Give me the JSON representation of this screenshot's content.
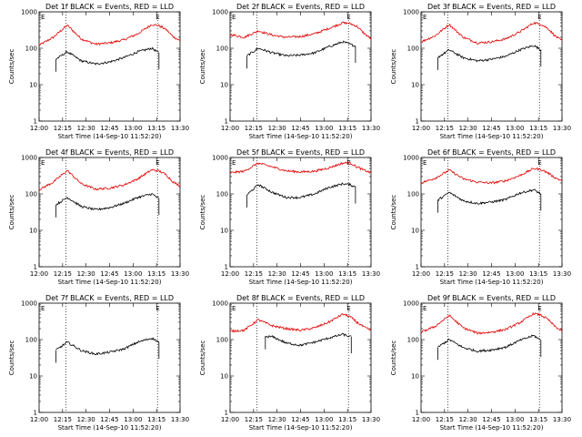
{
  "chart_data": {
    "type": "line",
    "y_scale": "log",
    "ylim": [
      1,
      1000
    ],
    "xlim": [
      0,
      100
    ],
    "x_tick_labels": [
      "12:00",
      "12:15",
      "12:30",
      "12:45",
      "13:00",
      "13:15",
      "13:30"
    ],
    "y_tick_labels": [
      "1",
      "10",
      "100",
      "1000"
    ],
    "ylabel": "Counts/sec",
    "xlabel": "Start Time (14-Sep-10 11:52:20)",
    "series_legend": {
      "black": "Events",
      "red": "LLD"
    },
    "colors": {
      "events": "#000000",
      "lld": "#e00000"
    },
    "marker_label": "E",
    "x_sample": [
      0,
      10,
      20,
      30,
      40,
      50,
      60,
      70,
      80,
      85,
      90,
      95,
      100
    ],
    "panels": [
      {
        "title": "Det 1f BLACK = Events, RED = LLD",
        "vlines": [
          19,
          84
        ],
        "events_start": 12,
        "events_end": 85,
        "events": [
          null,
          45,
          80,
          45,
          37,
          42,
          55,
          80,
          100,
          75,
          null,
          null,
          null
        ],
        "lld": [
          120,
          200,
          430,
          180,
          130,
          140,
          170,
          250,
          450,
          420,
          330,
          210,
          160
        ]
      },
      {
        "title": "Det 2f BLACK = Events, RED = LLD",
        "vlines": [
          19,
          84
        ],
        "events_start": 12,
        "events_end": 89,
        "events": [
          null,
          55,
          100,
          75,
          62,
          65,
          75,
          110,
          150,
          130,
          110,
          null,
          null
        ],
        "lld": [
          240,
          200,
          300,
          230,
          200,
          210,
          250,
          350,
          500,
          480,
          400,
          260,
          180
        ]
      },
      {
        "title": "Det 3f BLACK = Events, RED = LLD",
        "vlines": [
          19,
          84
        ],
        "events_start": 12,
        "events_end": 85,
        "events": [
          null,
          50,
          90,
          55,
          45,
          50,
          60,
          90,
          120,
          90,
          null,
          null,
          null
        ],
        "lld": [
          150,
          220,
          450,
          200,
          140,
          150,
          180,
          280,
          500,
          460,
          350,
          220,
          160
        ]
      },
      {
        "title": "Det 4f BLACK = Events, RED = LLD",
        "vlines": [
          19,
          84
        ],
        "events_start": 12,
        "events_end": 85,
        "events": [
          null,
          45,
          80,
          45,
          37,
          42,
          55,
          80,
          100,
          75,
          null,
          null,
          null
        ],
        "lld": [
          130,
          210,
          440,
          190,
          135,
          145,
          175,
          260,
          460,
          430,
          340,
          215,
          165
        ]
      },
      {
        "title": "Det 5f BLACK = Events, RED = LLD",
        "vlines": [
          19,
          84
        ],
        "events_start": 12,
        "events_end": 89,
        "events": [
          null,
          80,
          180,
          110,
          80,
          80,
          100,
          150,
          190,
          180,
          150,
          null,
          null
        ],
        "lld": [
          380,
          420,
          700,
          550,
          430,
          400,
          420,
          520,
          700,
          720,
          550,
          450,
          380
        ]
      },
      {
        "title": "Det 6f BLACK = Events, RED = LLD",
        "vlines": [
          19,
          84
        ],
        "events_start": 12,
        "events_end": 85,
        "events": [
          null,
          60,
          110,
          65,
          55,
          60,
          70,
          105,
          130,
          100,
          null,
          null,
          null
        ],
        "lld": [
          200,
          270,
          450,
          260,
          210,
          200,
          230,
          320,
          500,
          470,
          380,
          280,
          230
        ]
      },
      {
        "title": "Det 7f BLACK = Events, RED = LLD",
        "vlines": [
          19,
          84
        ],
        "events_start": 12,
        "events_end": 85,
        "events": [
          null,
          45,
          85,
          50,
          40,
          45,
          55,
          85,
          110,
          85,
          null,
          null,
          null
        ],
        "lld": []
      },
      {
        "title": "Det 8f BLACK = Events, RED = LLD",
        "vlines": [
          19,
          84
        ],
        "events_start": 25,
        "events_end": 86,
        "events": [
          null,
          null,
          null,
          120,
          80,
          70,
          85,
          110,
          140,
          120,
          null,
          null,
          null
        ],
        "lld": [
          170,
          180,
          350,
          240,
          200,
          180,
          210,
          300,
          500,
          430,
          300,
          220,
          180
        ]
      },
      {
        "title": "Det 9f BLACK = Events, RED = LLD",
        "vlines": [
          19,
          84
        ],
        "events_start": 12,
        "events_end": 85,
        "events": [
          null,
          55,
          100,
          60,
          48,
          52,
          62,
          95,
          130,
          95,
          null,
          null,
          null
        ],
        "lld": [
          160,
          230,
          460,
          210,
          150,
          160,
          190,
          290,
          520,
          470,
          360,
          230,
          170
        ]
      }
    ]
  }
}
